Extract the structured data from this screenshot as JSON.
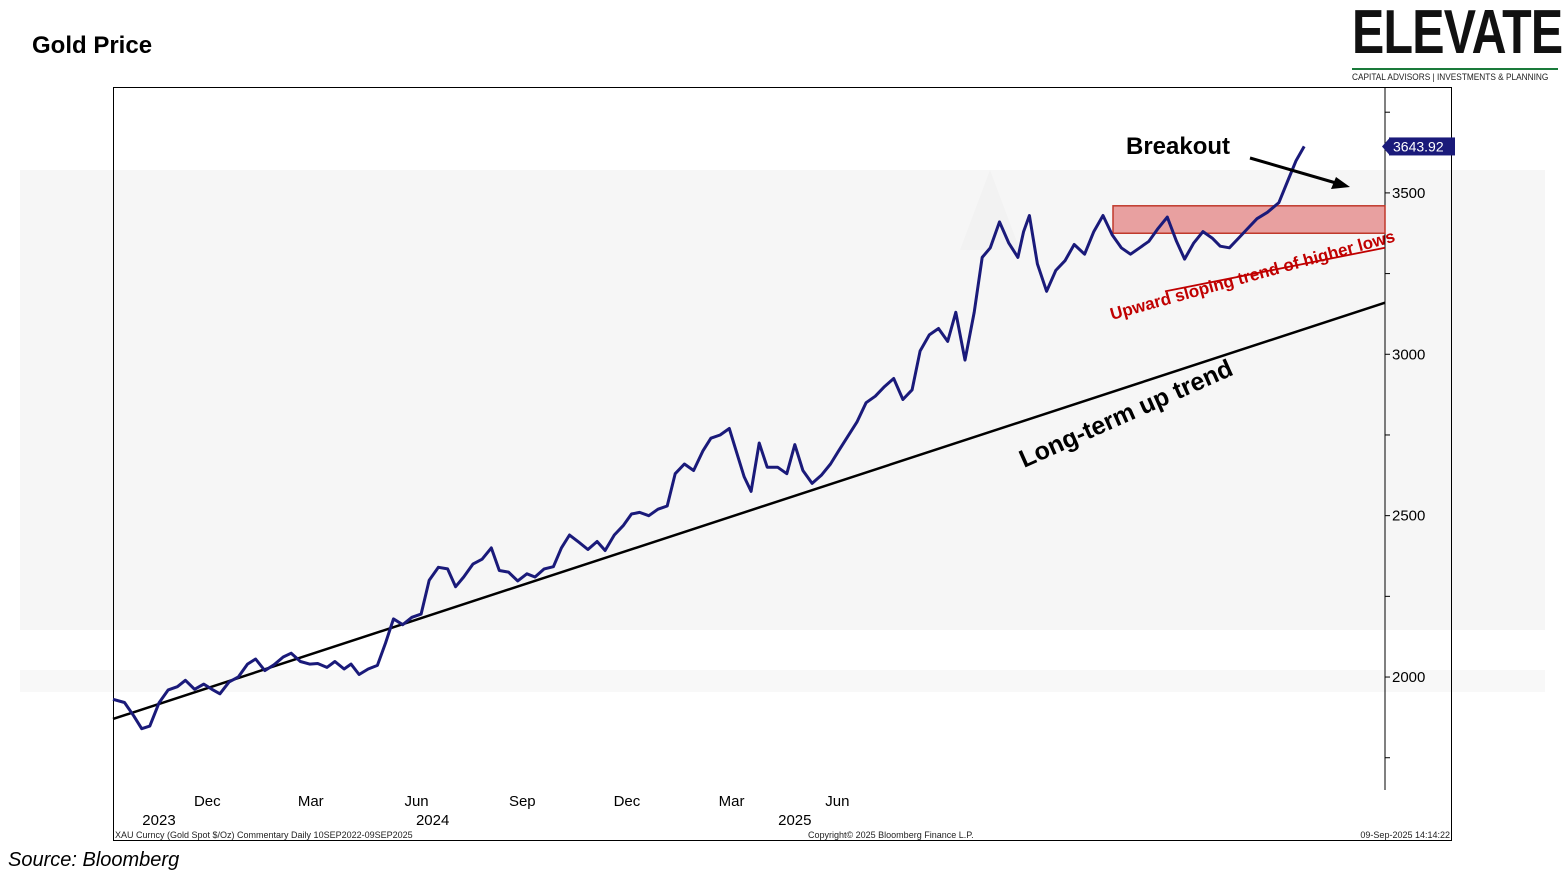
{
  "page": {
    "title": "Gold Price",
    "source": "Source: Bloomberg"
  },
  "logo": {
    "name": "ELEVATE",
    "tagline": "CAPITAL ADVISORS | INVESTMENTS & PLANNING",
    "accent_color": "#1a7a3a"
  },
  "chart_data": {
    "type": "line",
    "title": "Gold Price",
    "xlabel": "",
    "ylabel": "",
    "ylim": [
      1650,
      3825
    ],
    "y_ticks": [
      2000,
      2500,
      3000,
      3500
    ],
    "month_ticks": [
      {
        "label": "Dec",
        "date": "2022-12-01"
      },
      {
        "label": "Mar",
        "date": "2023-03-01"
      },
      {
        "label": "Jun",
        "date": "2023-06-01"
      },
      {
        "label": "Sep",
        "date": "2023-09-01"
      },
      {
        "label": "Dec",
        "date": "2023-12-01"
      },
      {
        "label": "Mar",
        "date": "2024-03-01"
      },
      {
        "label": "Jun",
        "date": "2024-06-01"
      }
    ],
    "year_labels": [
      {
        "label": "2023",
        "date": "2022-10-20"
      },
      {
        "label": "2024",
        "date": "2023-06-15"
      },
      {
        "label": "2025",
        "date": "2024-04-25"
      }
    ],
    "x_range": [
      "2022-09-10",
      "2025-09-09"
    ],
    "series": [
      {
        "color": "#1a1a7a",
        "points": [
          [
            "2022-09-10",
            1931
          ],
          [
            "2022-09-20",
            1921
          ],
          [
            "2022-09-28",
            1880
          ],
          [
            "2022-10-05",
            1840
          ],
          [
            "2022-10-12",
            1848
          ],
          [
            "2022-10-20",
            1920
          ],
          [
            "2022-10-28",
            1960
          ],
          [
            "2022-11-05",
            1970
          ],
          [
            "2022-11-12",
            1990
          ],
          [
            "2022-11-20",
            1962
          ],
          [
            "2022-11-28",
            1978
          ],
          [
            "2022-12-05",
            1962
          ],
          [
            "2022-12-12",
            1948
          ],
          [
            "2022-12-20",
            1985
          ],
          [
            "2022-12-28",
            2000
          ],
          [
            "2023-01-05",
            2040
          ],
          [
            "2023-01-12",
            2056
          ],
          [
            "2023-01-20",
            2020
          ],
          [
            "2023-01-28",
            2038
          ],
          [
            "2023-02-05",
            2062
          ],
          [
            "2023-02-12",
            2074
          ],
          [
            "2023-02-20",
            2048
          ],
          [
            "2023-02-28",
            2040
          ],
          [
            "2023-03-07",
            2042
          ],
          [
            "2023-03-15",
            2030
          ],
          [
            "2023-03-22",
            2048
          ],
          [
            "2023-03-30",
            2025
          ],
          [
            "2023-04-05",
            2040
          ],
          [
            "2023-04-12",
            2008
          ],
          [
            "2023-04-20",
            2025
          ],
          [
            "2023-04-28",
            2036
          ],
          [
            "2023-05-05",
            2105
          ],
          [
            "2023-05-12",
            2180
          ],
          [
            "2023-05-20",
            2162
          ],
          [
            "2023-05-28",
            2185
          ],
          [
            "2023-06-05",
            2195
          ],
          [
            "2023-06-12",
            2300
          ],
          [
            "2023-06-20",
            2340
          ],
          [
            "2023-06-28",
            2335
          ],
          [
            "2023-07-05",
            2280
          ],
          [
            "2023-07-12",
            2310
          ],
          [
            "2023-07-20",
            2350
          ],
          [
            "2023-07-28",
            2365
          ],
          [
            "2023-08-05",
            2400
          ],
          [
            "2023-08-12",
            2330
          ],
          [
            "2023-08-20",
            2325
          ],
          [
            "2023-08-28",
            2298
          ],
          [
            "2023-09-05",
            2320
          ],
          [
            "2023-09-12",
            2310
          ],
          [
            "2023-09-20",
            2335
          ],
          [
            "2023-09-28",
            2342
          ],
          [
            "2023-10-05",
            2400
          ],
          [
            "2023-10-12",
            2440
          ],
          [
            "2023-10-20",
            2418
          ],
          [
            "2023-10-28",
            2395
          ],
          [
            "2023-11-05",
            2420
          ],
          [
            "2023-11-12",
            2392
          ],
          [
            "2023-11-20",
            2440
          ],
          [
            "2023-11-28",
            2470
          ],
          [
            "2023-12-05",
            2505
          ],
          [
            "2023-12-12",
            2510
          ],
          [
            "2023-12-20",
            2500
          ],
          [
            "2023-12-28",
            2520
          ],
          [
            "2024-01-05",
            2530
          ],
          [
            "2024-01-12",
            2630
          ],
          [
            "2024-01-20",
            2660
          ],
          [
            "2024-01-28",
            2640
          ],
          [
            "2024-02-05",
            2700
          ],
          [
            "2024-02-12",
            2740
          ],
          [
            "2024-02-20",
            2750
          ],
          [
            "2024-02-28",
            2770
          ],
          [
            "2024-03-05",
            2700
          ],
          [
            "2024-03-12",
            2620
          ],
          [
            "2024-03-18",
            2575
          ],
          [
            "2024-03-25",
            2725
          ],
          [
            "2024-04-01",
            2650
          ],
          [
            "2024-04-10",
            2650
          ],
          [
            "2024-04-18",
            2630
          ],
          [
            "2024-04-25",
            2720
          ],
          [
            "2024-05-02",
            2640
          ],
          [
            "2024-05-10",
            2600
          ],
          [
            "2024-05-18",
            2625
          ],
          [
            "2024-05-26",
            2660
          ],
          [
            "2024-06-02",
            2700
          ],
          [
            "2024-06-10",
            2745
          ],
          [
            "2024-06-18",
            2790
          ],
          [
            "2024-06-26",
            2850
          ],
          [
            "2024-07-04",
            2870
          ],
          [
            "2024-07-12",
            2900
          ],
          [
            "2024-07-20",
            2925
          ],
          [
            "2024-07-28",
            2860
          ],
          [
            "2024-08-05",
            2890
          ],
          [
            "2024-08-12",
            3010
          ],
          [
            "2024-08-20",
            3060
          ],
          [
            "2024-08-28",
            3080
          ],
          [
            "2024-09-05",
            3040
          ],
          [
            "2024-09-12",
            3130
          ],
          [
            "2024-09-20",
            2982
          ],
          [
            "2024-09-28",
            3130
          ],
          [
            "2024-10-05",
            3300
          ],
          [
            "2024-10-12",
            3330
          ],
          [
            "2024-10-20",
            3410
          ],
          [
            "2024-10-28",
            3345
          ],
          [
            "2024-11-05",
            3300
          ],
          [
            "2024-11-10",
            3380
          ],
          [
            "2024-11-15",
            3430
          ],
          [
            "2024-11-22",
            3280
          ],
          [
            "2024-11-30",
            3195
          ],
          [
            "2024-12-08",
            3260
          ],
          [
            "2024-12-16",
            3290
          ],
          [
            "2024-12-24",
            3340
          ],
          [
            "2025-01-02",
            3310
          ],
          [
            "2025-01-10",
            3380
          ],
          [
            "2025-01-18",
            3430
          ],
          [
            "2025-01-26",
            3370
          ],
          [
            "2025-02-03",
            3330
          ],
          [
            "2025-02-11",
            3310
          ],
          [
            "2025-02-19",
            3330
          ],
          [
            "2025-02-27",
            3350
          ],
          [
            "2025-03-07",
            3390
          ],
          [
            "2025-03-15",
            3425
          ],
          [
            "2025-03-23",
            3350
          ],
          [
            "2025-03-30",
            3295
          ],
          [
            "2025-04-07",
            3345
          ],
          [
            "2025-04-15",
            3380
          ],
          [
            "2025-04-23",
            3360
          ],
          [
            "2025-04-30",
            3335
          ],
          [
            "2025-05-08",
            3330
          ],
          [
            "2025-05-16",
            3360
          ],
          [
            "2025-05-24",
            3390
          ],
          [
            "2025-06-01",
            3420
          ],
          [
            "2025-06-10",
            3440
          ],
          [
            "2025-06-20",
            3470
          ],
          [
            "2025-06-28",
            3540
          ],
          [
            "2025-07-05",
            3600
          ],
          [
            "2025-07-12",
            3643.92
          ]
        ]
      }
    ],
    "last_value_label": "3643.92",
    "annotations": [
      {
        "id": "breakout",
        "text": "Breakout"
      },
      {
        "id": "higher_lows",
        "text": "Upward sloping trend of higher lows"
      },
      {
        "id": "long_term",
        "text": "Long-term up trend"
      }
    ],
    "footer_left": "XAU Curncy (Gold Spot   $/Oz) Commentary  Daily 10SEP2022-09SEP2025",
    "footer_center": "Copyright© 2025 Bloomberg Finance L.P.",
    "footer_right": "09-Sep-2025 14:14:22",
    "colors": {
      "line": "#1a1a7a",
      "resistance_fill": "#e8a0a0",
      "resistance_border": "#c0392b",
      "higher_lows_text": "#c00000",
      "label_bg": "#1a1a7a"
    }
  }
}
